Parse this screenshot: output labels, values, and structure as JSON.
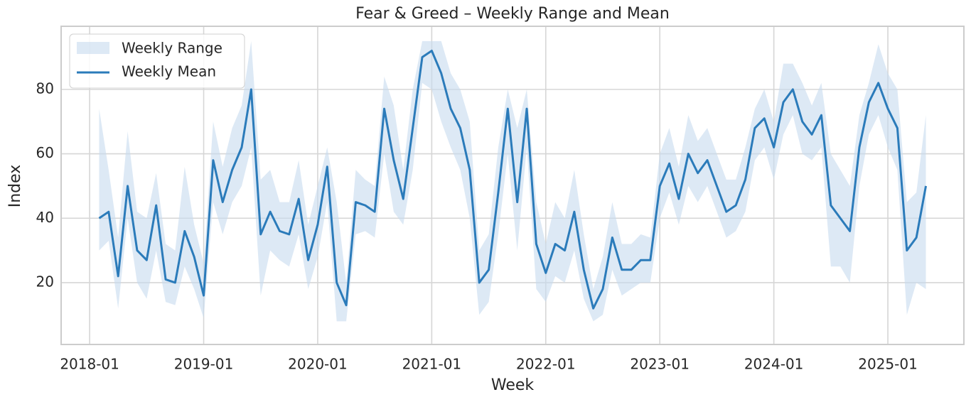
{
  "chart_data": {
    "type": "range_line",
    "title": "Fear & Greed – Weekly Range and Mean",
    "x_label": "Week",
    "y_label": "Index",
    "x": [
      "2018-02",
      "2018-03",
      "2018-04",
      "2018-05",
      "2018-06",
      "2018-07",
      "2018-08",
      "2018-09",
      "2018-10",
      "2018-11",
      "2018-12",
      "2019-01",
      "2019-02",
      "2019-03",
      "2019-04",
      "2019-05",
      "2019-06",
      "2019-07",
      "2019-08",
      "2019-09",
      "2019-10",
      "2019-11",
      "2019-12",
      "2020-01",
      "2020-02",
      "2020-03",
      "2020-04",
      "2020-05",
      "2020-06",
      "2020-07",
      "2020-08",
      "2020-09",
      "2020-10",
      "2020-11",
      "2020-12",
      "2021-01",
      "2021-02",
      "2021-03",
      "2021-04",
      "2021-05",
      "2021-06",
      "2021-07",
      "2021-08",
      "2021-09",
      "2021-10",
      "2021-11",
      "2021-12",
      "2022-01",
      "2022-02",
      "2022-03",
      "2022-04",
      "2022-05",
      "2022-06",
      "2022-07",
      "2022-08",
      "2022-09",
      "2022-10",
      "2022-11",
      "2022-12",
      "2023-01",
      "2023-02",
      "2023-03",
      "2023-04",
      "2023-05",
      "2023-06",
      "2023-07",
      "2023-08",
      "2023-09",
      "2023-10",
      "2023-11",
      "2023-12",
      "2024-01",
      "2024-02",
      "2024-03",
      "2024-04",
      "2024-05",
      "2024-06",
      "2024-07",
      "2024-08",
      "2024-09",
      "2024-10",
      "2024-11",
      "2024-12",
      "2025-01",
      "2025-02",
      "2025-03",
      "2025-04",
      "2025-05"
    ],
    "series": [
      {
        "name": "Weekly Range",
        "color": "#c6dbef",
        "low": [
          30,
          33,
          12,
          40,
          20,
          15,
          30,
          14,
          13,
          25,
          18,
          9,
          45,
          35,
          45,
          50,
          62,
          16,
          30,
          27,
          25,
          35,
          18,
          28,
          45,
          8,
          8,
          35,
          36,
          34,
          60,
          42,
          38,
          55,
          82,
          80,
          70,
          62,
          55,
          40,
          10,
          14,
          35,
          60,
          30,
          62,
          18,
          14,
          22,
          20,
          30,
          15,
          8,
          10,
          24,
          16,
          18,
          20,
          20,
          40,
          48,
          38,
          50,
          45,
          50,
          42,
          34,
          36,
          42,
          58,
          62,
          52,
          66,
          72,
          60,
          58,
          62,
          25,
          25,
          20,
          50,
          66,
          72,
          62,
          55,
          10,
          20,
          18
        ],
        "high": [
          74,
          55,
          34,
          67,
          42,
          40,
          54,
          32,
          30,
          56,
          38,
          26,
          70,
          56,
          68,
          75,
          95,
          52,
          55,
          45,
          45,
          58,
          38,
          50,
          62,
          45,
          20,
          55,
          52,
          50,
          84,
          75,
          55,
          80,
          95,
          95,
          95,
          85,
          80,
          70,
          30,
          35,
          62,
          80,
          68,
          80,
          45,
          32,
          45,
          40,
          55,
          35,
          18,
          28,
          45,
          32,
          32,
          35,
          34,
          60,
          68,
          56,
          72,
          64,
          68,
          60,
          52,
          52,
          62,
          74,
          80,
          70,
          88,
          88,
          82,
          75,
          82,
          60,
          55,
          50,
          72,
          82,
          94,
          85,
          80,
          45,
          48,
          72
        ]
      },
      {
        "name": "Weekly Mean",
        "color": "#2b7bba",
        "values": [
          40,
          42,
          22,
          50,
          30,
          27,
          44,
          21,
          20,
          36,
          28,
          16,
          58,
          45,
          55,
          62,
          80,
          35,
          42,
          36,
          35,
          46,
          27,
          38,
          56,
          20,
          13,
          45,
          44,
          42,
          74,
          58,
          46,
          68,
          90,
          92,
          85,
          74,
          68,
          55,
          20,
          24,
          48,
          74,
          45,
          74,
          32,
          23,
          32,
          30,
          42,
          24,
          12,
          18,
          34,
          24,
          24,
          27,
          27,
          50,
          57,
          46,
          60,
          54,
          58,
          50,
          42,
          44,
          52,
          68,
          71,
          62,
          76,
          80,
          70,
          66,
          72,
          44,
          40,
          36,
          62,
          76,
          82,
          74,
          68,
          30,
          34,
          50
        ]
      }
    ],
    "xlim": [
      "2017-10",
      "2025-09"
    ],
    "xticks": [
      "2018-01",
      "2019-01",
      "2020-01",
      "2021-01",
      "2022-01",
      "2023-01",
      "2024-01",
      "2025-01"
    ],
    "ylim": [
      0.8,
      99.6
    ],
    "yticks": [
      20,
      40,
      60,
      80
    ],
    "grid": true,
    "legend": "upper left"
  }
}
